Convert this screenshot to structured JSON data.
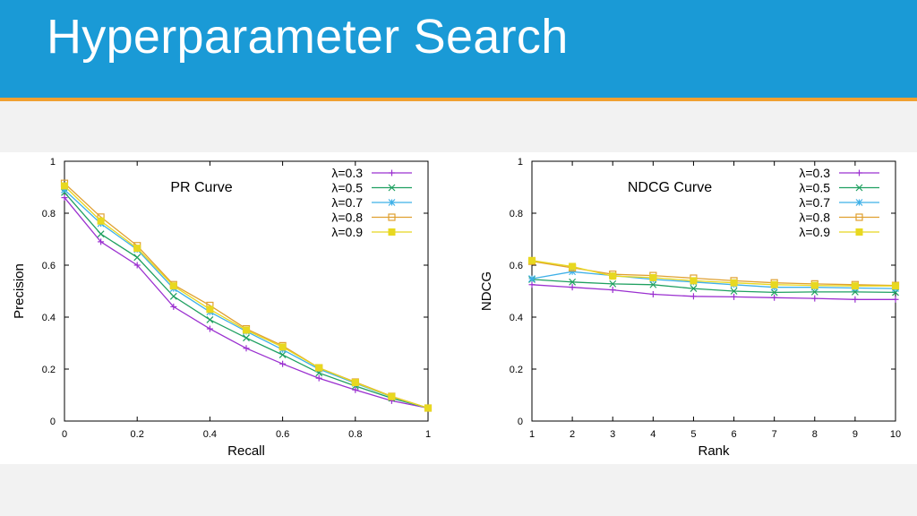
{
  "slide": {
    "title": "Hyperparameter Search"
  },
  "legend_colors": {
    "λ=0.3": "#9b30d0",
    "λ=0.5": "#1fa060",
    "λ=0.7": "#3fb0e8",
    "λ=0.8": "#e0a030",
    "λ=0.9": "#e8d820"
  },
  "chart_data": [
    {
      "type": "line",
      "title": "PR Curve",
      "xlabel": "Recall",
      "ylabel": "Precision",
      "xlim": [
        0,
        1
      ],
      "ylim": [
        0,
        1
      ],
      "xticks": [
        "0",
        "0.2",
        "0.4",
        "0.6",
        "0.8",
        "1"
      ],
      "yticks": [
        "0",
        "0.2",
        "0.4",
        "0.6",
        "0.8",
        "1"
      ],
      "legend_position": "top-right",
      "x": [
        0,
        0.1,
        0.2,
        0.3,
        0.4,
        0.5,
        0.6,
        0.7,
        0.8,
        0.9,
        1.0
      ],
      "series": [
        {
          "name": "λ=0.3",
          "marker": "+",
          "values": [
            0.86,
            0.69,
            0.6,
            0.44,
            0.355,
            0.28,
            0.22,
            0.165,
            0.12,
            0.078,
            0.05
          ]
        },
        {
          "name": "λ=0.5",
          "marker": "x",
          "values": [
            0.88,
            0.72,
            0.63,
            0.48,
            0.39,
            0.32,
            0.255,
            0.185,
            0.135,
            0.088,
            0.05
          ]
        },
        {
          "name": "λ=0.7",
          "marker": "*",
          "values": [
            0.89,
            0.76,
            0.66,
            0.51,
            0.42,
            0.345,
            0.275,
            0.2,
            0.145,
            0.093,
            0.05
          ]
        },
        {
          "name": "λ=0.8",
          "marker": "square",
          "values": [
            0.915,
            0.785,
            0.675,
            0.525,
            0.445,
            0.355,
            0.29,
            0.205,
            0.15,
            0.095,
            0.05
          ]
        },
        {
          "name": "λ=0.9",
          "marker": "filled-square",
          "values": [
            0.905,
            0.77,
            0.665,
            0.52,
            0.43,
            0.35,
            0.285,
            0.205,
            0.148,
            0.094,
            0.05
          ]
        }
      ]
    },
    {
      "type": "line",
      "title": "NDCG Curve",
      "xlabel": "Rank",
      "ylabel": "NDCG",
      "xlim": [
        1,
        10
      ],
      "ylim": [
        0,
        1
      ],
      "xticks": [
        "1",
        "2",
        "3",
        "4",
        "5",
        "6",
        "7",
        "8",
        "9",
        "10"
      ],
      "yticks": [
        "0",
        "0.2",
        "0.4",
        "0.6",
        "0.8",
        "1"
      ],
      "legend_position": "top-right",
      "x": [
        1,
        2,
        3,
        4,
        5,
        6,
        7,
        8,
        9,
        10
      ],
      "series": [
        {
          "name": "λ=0.3",
          "marker": "+",
          "values": [
            0.525,
            0.515,
            0.505,
            0.488,
            0.48,
            0.478,
            0.475,
            0.472,
            0.468,
            0.468
          ]
        },
        {
          "name": "λ=0.5",
          "marker": "x",
          "values": [
            0.545,
            0.535,
            0.528,
            0.525,
            0.51,
            0.5,
            0.495,
            0.497,
            0.497,
            0.495
          ]
        },
        {
          "name": "λ=0.7",
          "marker": "*",
          "values": [
            0.548,
            0.575,
            0.56,
            0.545,
            0.535,
            0.525,
            0.515,
            0.515,
            0.512,
            0.51
          ]
        },
        {
          "name": "λ=0.8",
          "marker": "square",
          "values": [
            0.615,
            0.59,
            0.565,
            0.56,
            0.55,
            0.54,
            0.532,
            0.528,
            0.525,
            0.522
          ]
        },
        {
          "name": "λ=0.9",
          "marker": "filled-square",
          "values": [
            0.618,
            0.595,
            0.558,
            0.552,
            0.54,
            0.532,
            0.525,
            0.522,
            0.52,
            0.52
          ]
        }
      ]
    }
  ]
}
